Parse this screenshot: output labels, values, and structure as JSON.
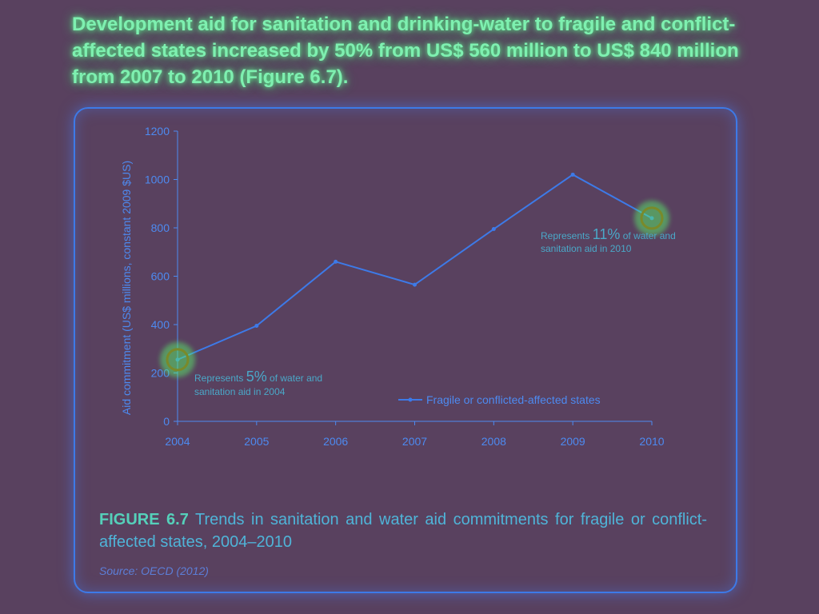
{
  "headline": "Development aid for sanitation and drinking-water to fragile and conflict-affected states increased by 50% from US$ 560 million to US$ 840 million from 2007 to 2010 (Figure 6.7).",
  "caption": {
    "figure_label": "FIGURE 6.7",
    "text": "Trends in sanitation and water aid commitments for fragile or conflict-affected states, 2004–2010"
  },
  "source": "Source: OECD (2012)",
  "annotations": {
    "a2004": {
      "prefix": "Represents ",
      "percent": "5%",
      "suffix": " of water and",
      "line2": "sanitation aid in 2004"
    },
    "a2010": {
      "prefix": "Represents ",
      "percent": "11%",
      "suffix": " of water and",
      "line2": "sanitation aid in 2010"
    }
  },
  "chart_data": {
    "type": "line",
    "title": "",
    "xlabel": "",
    "ylabel": "Aid commitment (US$ millions, constant 2009 $US)",
    "x": [
      2004,
      2005,
      2006,
      2007,
      2008,
      2009,
      2010
    ],
    "ylim": [
      0,
      1200
    ],
    "yticks": [
      0,
      200,
      400,
      600,
      800,
      1000,
      1200
    ],
    "series": [
      {
        "name": "Fragile or conflicted-affected states",
        "values": [
          255,
          395,
          660,
          565,
          795,
          1020,
          840
        ]
      }
    ],
    "legend": "bottom-right",
    "grid": false,
    "highlighted_points": [
      2004,
      2010
    ],
    "colors": {
      "line": "#3d7ae8",
      "axis": "#4d8af0",
      "highlight": "#7a8a2a"
    }
  }
}
